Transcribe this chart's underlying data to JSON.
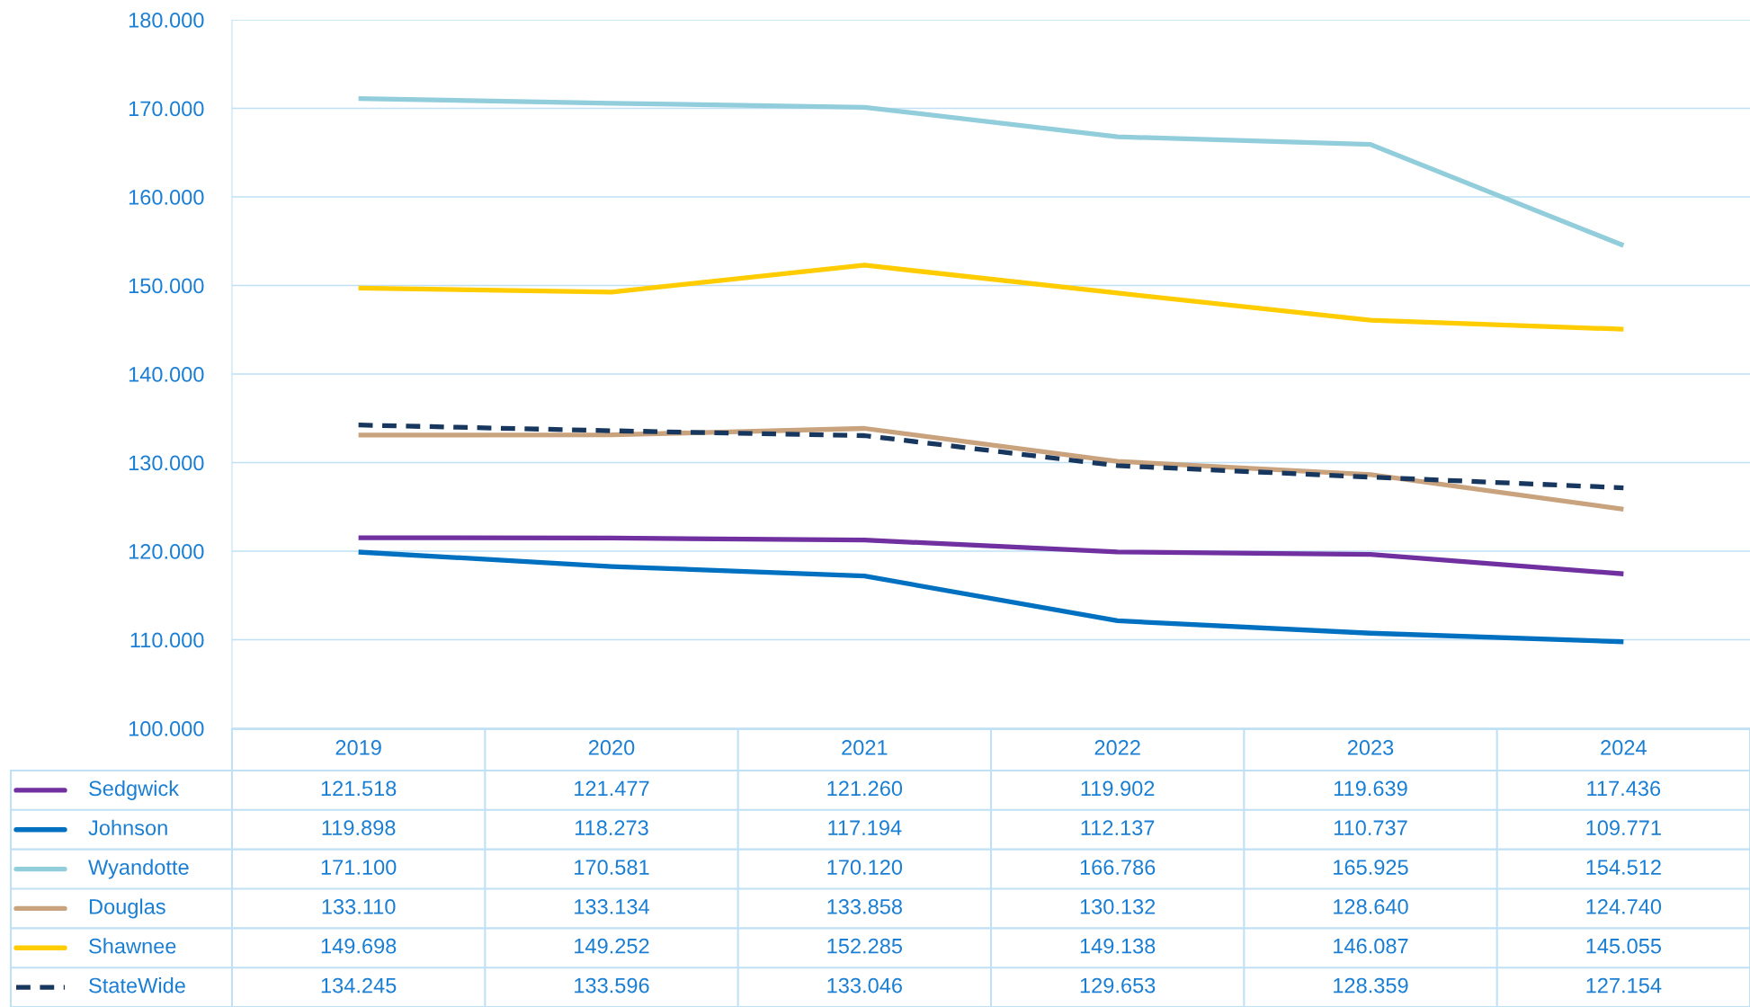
{
  "chart_data": {
    "type": "line",
    "categories": [
      "2019",
      "2020",
      "2021",
      "2022",
      "2023",
      "2024"
    ],
    "series": [
      {
        "name": "Sedgwick",
        "color": "#7030a0",
        "values": [
          121.518,
          121.477,
          121.26,
          119.902,
          119.639,
          117.436
        ],
        "value_labels": [
          "121.518",
          "121.477",
          "121.260",
          "119.902",
          "119.639",
          "117.436"
        ]
      },
      {
        "name": "Johnson",
        "color": "#0070c0",
        "values": [
          119.898,
          118.273,
          117.194,
          112.137,
          110.737,
          109.771
        ],
        "value_labels": [
          "119.898",
          "118.273",
          "117.194",
          "112.137",
          "110.737",
          "109.771"
        ]
      },
      {
        "name": "Wyandotte",
        "color": "#92cddc",
        "values": [
          171.1,
          170.581,
          170.12,
          166.786,
          165.925,
          154.512
        ],
        "value_labels": [
          "171.100",
          "170.581",
          "170.120",
          "166.786",
          "165.925",
          "154.512"
        ]
      },
      {
        "name": "Douglas",
        "color": "#c9a27e",
        "values": [
          133.11,
          133.134,
          133.858,
          130.132,
          128.64,
          124.74
        ],
        "value_labels": [
          "133.110",
          "133.134",
          "133.858",
          "130.132",
          "128.640",
          "124.740"
        ]
      },
      {
        "name": "Shawnee",
        "color": "#ffcc00",
        "values": [
          149.698,
          149.252,
          152.285,
          149.138,
          146.087,
          145.055
        ],
        "value_labels": [
          "149.698",
          "149.252",
          "152.285",
          "149.138",
          "146.087",
          "145.055"
        ]
      },
      {
        "name": "StateWide",
        "color": "#17375e",
        "line_style": "dashed",
        "values": [
          134.245,
          133.596,
          133.046,
          129.653,
          128.359,
          127.154
        ],
        "value_labels": [
          "134.245",
          "133.596",
          "133.046",
          "129.653",
          "128.359",
          "127.154"
        ]
      }
    ],
    "ylim": [
      100,
      180
    ],
    "yticks": [
      {
        "value": 100,
        "label": "100.000"
      },
      {
        "value": 110,
        "label": "110.000"
      },
      {
        "value": 120,
        "label": "120.000"
      },
      {
        "value": 130,
        "label": "130.000"
      },
      {
        "value": 140,
        "label": "140.000"
      },
      {
        "value": 150,
        "label": "150.000"
      },
      {
        "value": 160,
        "label": "160.000"
      },
      {
        "value": 170,
        "label": "170.000"
      },
      {
        "value": 180,
        "label": "180.000"
      }
    ],
    "grid": "y",
    "legend": "bottom left",
    "line_style": "solid",
    "marker": "none"
  }
}
